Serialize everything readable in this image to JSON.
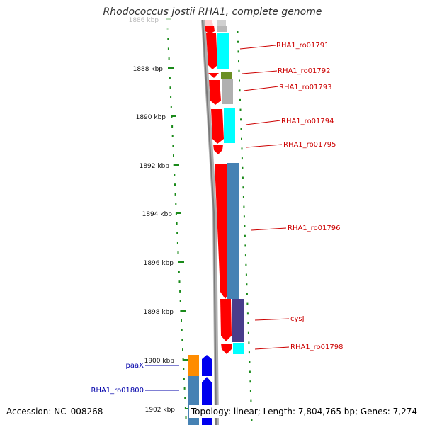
{
  "title": "Rhodococcus jostii RHA1, complete genome",
  "footer": {
    "accession": "Accession: NC_008268",
    "summary": "Topology: linear; Length: 7,804,765 bp; Genes: 7,274"
  },
  "scale": {
    "ticks": [
      {
        "label": "1886 kbp",
        "faded": true
      },
      {
        "label": "1888 kbp"
      },
      {
        "label": "1890 kbp"
      },
      {
        "label": "1892 kbp"
      },
      {
        "label": "1894 kbp"
      },
      {
        "label": "1896 kbp"
      },
      {
        "label": "1898 kbp"
      },
      {
        "label": "1900 kbp"
      },
      {
        "label": "1902 kbp"
      }
    ]
  },
  "colors": {
    "cds_forward_plus": "#ff0000",
    "cds_other": "#0000ee",
    "label_plus": "#cc0000",
    "label_minus": "#0000aa",
    "backbone": "#888888"
  },
  "genes": [
    {
      "label": "RHA1_ro01791",
      "strand": "plus"
    },
    {
      "label": "RHA1_ro01792",
      "strand": "plus"
    },
    {
      "label": "RHA1_ro01793",
      "strand": "plus"
    },
    {
      "label": "RHA1_ro01794",
      "strand": "plus"
    },
    {
      "label": "RHA1_ro01795",
      "strand": "plus"
    },
    {
      "label": "RHA1_ro01796",
      "strand": "plus"
    },
    {
      "label": "cysJ",
      "strand": "plus"
    },
    {
      "label": "RHA1_ro01798",
      "strand": "plus"
    },
    {
      "label": "paaX",
      "strand": "minus"
    },
    {
      "label": "RHA1_ro01800",
      "strand": "minus"
    }
  ]
}
